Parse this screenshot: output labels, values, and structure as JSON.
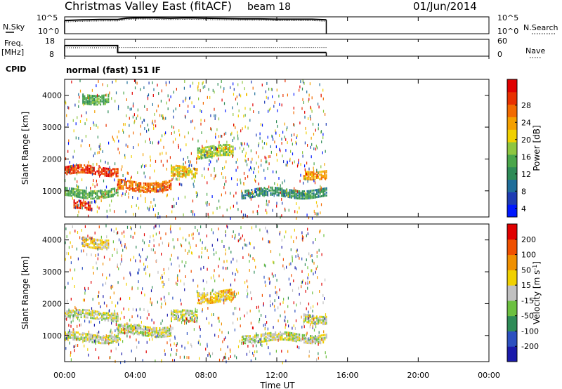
{
  "header": {
    "title": "Christmas Valley East (fitACF)",
    "beam": "beam 18",
    "date": "01/Jun/2014"
  },
  "side_labels": {
    "nsky": "N.Sky",
    "freq": "Freq.",
    "freq_unit": "[MHz]",
    "cpid": "CPID",
    "nsearch": "N.Search",
    "nave": "Nave"
  },
  "cpid_text": "normal (fast) 151 IF",
  "chart_data": [
    {
      "type": "line",
      "panel": "noise",
      "ylabel_left": "N.Sky",
      "ylabel_right": "N.Search",
      "yticks_left": [
        "10^5",
        "10^0"
      ],
      "yticks_right": [
        "10^5",
        "10^0"
      ],
      "log_scale": true,
      "x_hours": [
        0.0,
        0.5,
        1.0,
        2.0,
        3.0,
        3.5,
        4.0,
        5.0,
        6.0,
        7.0,
        8.0,
        9.0,
        10.0,
        11.0,
        12.0,
        13.0,
        14.0,
        14.8
      ],
      "nsky_log10": [
        3.9,
        4.0,
        4.1,
        4.2,
        4.2,
        4.6,
        4.7,
        4.7,
        4.6,
        4.7,
        4.6,
        4.5,
        4.4,
        4.4,
        4.3,
        4.3,
        4.3,
        4.1
      ],
      "nsearch_log10": [
        3.5,
        3.6,
        3.7,
        3.8,
        3.8,
        4.2,
        4.4,
        4.3,
        4.2,
        4.3,
        4.2,
        4.1,
        4.0,
        4.0,
        3.9,
        3.9,
        3.9,
        3.7
      ]
    },
    {
      "type": "line",
      "panel": "frequency",
      "ylabel_left": "Freq. [MHz]",
      "ylabel_right": "Nave",
      "yticks_left": [
        "18",
        "8"
      ],
      "yticks_right": [
        "60",
        "0"
      ],
      "ylim_left": [
        8,
        18
      ],
      "ylim_right": [
        0,
        60
      ],
      "x_hours": [
        0.0,
        3.0,
        3.0,
        14.8
      ],
      "freq_mhz": [
        14.3,
        14.3,
        10.2,
        10.2
      ],
      "nave": [
        30,
        30,
        31,
        31
      ]
    },
    {
      "type": "heatmap",
      "panel": "power",
      "ylabel": "Slant Range [km]",
      "yticks": [
        1000,
        2000,
        3000,
        4000
      ],
      "ylim": [
        180,
        4500
      ],
      "xlim_hours": [
        0,
        24
      ],
      "data_end_hours": 14.8,
      "colorbar_label": "Power [dB]",
      "colorbar_ticks": [
        "28",
        "24",
        "20",
        "16",
        "12",
        "8",
        "4"
      ],
      "colors": [
        "#0018ff",
        "#1e3cb4",
        "#1f6e9a",
        "#2e8b57",
        "#4aa64a",
        "#8ec63f",
        "#f0d000",
        "#f4a000",
        "#f26a00",
        "#e83000",
        "#e00000"
      ],
      "echo_bands": [
        {
          "t0": 0.0,
          "t1": 3.0,
          "r0": 1550,
          "r1": 1800,
          "level": 9
        },
        {
          "t0": 0.5,
          "t1": 1.5,
          "r0": 450,
          "r1": 700,
          "level": 9
        },
        {
          "t0": 0.0,
          "t1": 3.0,
          "r0": 850,
          "r1": 1100,
          "level": 4
        },
        {
          "t0": 3.0,
          "t1": 6.0,
          "r0": 1050,
          "r1": 1350,
          "level": 8
        },
        {
          "t0": 6.0,
          "t1": 7.5,
          "r0": 1450,
          "r1": 1800,
          "level": 6
        },
        {
          "t0": 7.5,
          "t1": 9.5,
          "r0": 2100,
          "r1": 2450,
          "level": 5
        },
        {
          "t0": 13.5,
          "t1": 14.8,
          "r0": 1450,
          "r1": 1700,
          "level": 7
        },
        {
          "t0": 10.0,
          "t1": 14.8,
          "r0": 850,
          "r1": 1100,
          "level": 3
        },
        {
          "t0": 1.0,
          "t1": 2.5,
          "r0": 3800,
          "r1": 4100,
          "level": 4
        }
      ]
    },
    {
      "type": "heatmap",
      "panel": "velocity",
      "ylabel": "Slant Range [km]",
      "yticks": [
        1000,
        2000,
        3000,
        4000
      ],
      "ylim": [
        180,
        4500
      ],
      "xlim_hours": [
        0,
        24
      ],
      "xticks": [
        "00:00",
        "04:00",
        "08:00",
        "12:00",
        "16:00",
        "20:00",
        "00:00"
      ],
      "xlabel": "Time UT",
      "colorbar_label": "Velocity [m s-1]",
      "colorbar_ticks": [
        "200",
        "100",
        "50",
        "15",
        "-15",
        "-50",
        "-100",
        "-200"
      ],
      "colors": [
        "#1a1aaa",
        "#2c50c0",
        "#2e8b57",
        "#6cc040",
        "#c0c0c0",
        "#f0d000",
        "#f09000",
        "#f05000",
        "#e00000"
      ],
      "echo_bands": [
        {
          "t0": 0.0,
          "t1": 3.0,
          "r0": 1550,
          "r1": 1800,
          "level": 4
        },
        {
          "t0": 0.0,
          "t1": 3.0,
          "r0": 850,
          "r1": 1100,
          "level": 4
        },
        {
          "t0": 3.0,
          "t1": 6.0,
          "r0": 1050,
          "r1": 1350,
          "level": 4
        },
        {
          "t0": 6.0,
          "t1": 7.5,
          "r0": 1450,
          "r1": 1800,
          "level": 4
        },
        {
          "t0": 7.5,
          "t1": 9.5,
          "r0": 2100,
          "r1": 2450,
          "level": 5
        },
        {
          "t0": 13.5,
          "t1": 14.8,
          "r0": 1450,
          "r1": 1700,
          "level": 4
        },
        {
          "t0": 10.0,
          "t1": 14.8,
          "r0": 850,
          "r1": 1100,
          "level": 4
        },
        {
          "t0": 1.0,
          "t1": 2.5,
          "r0": 3800,
          "r1": 4100,
          "level": 5
        }
      ]
    }
  ]
}
